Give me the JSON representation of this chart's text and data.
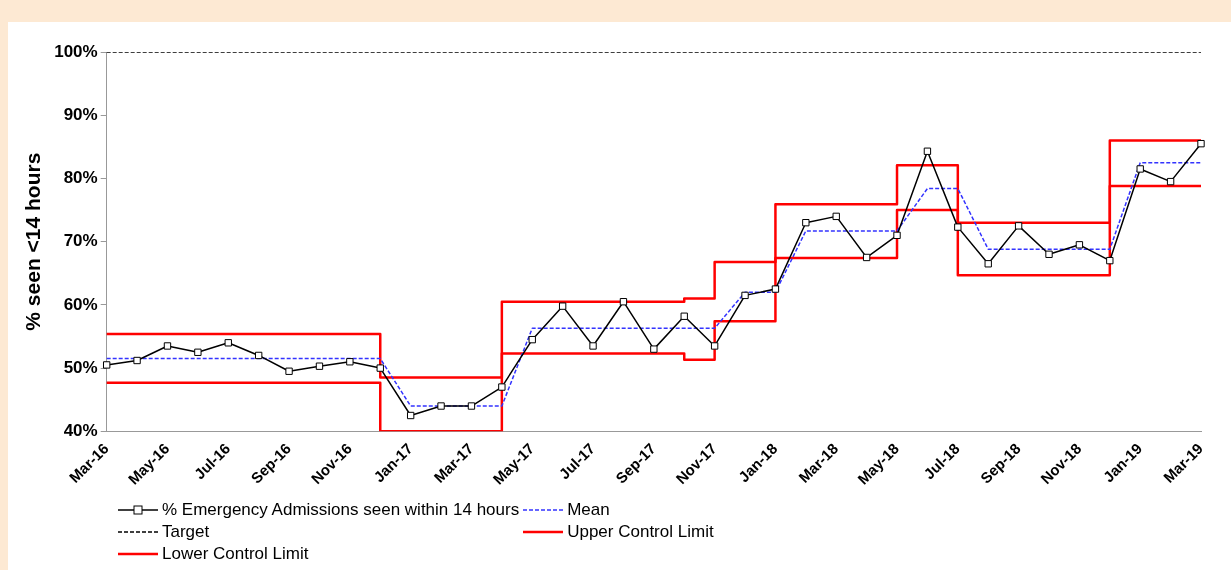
{
  "chart_data": {
    "type": "line",
    "ylabel": "% seen <14 hours",
    "categories": [
      "Mar-16",
      null,
      "May-16",
      null,
      "Jul-16",
      null,
      "Sep-16",
      null,
      "Nov-16",
      null,
      "Jan-17",
      null,
      "Mar-17",
      null,
      "May-17",
      null,
      "Jul-17",
      null,
      "Sep-17",
      null,
      "Nov-17",
      null,
      "Jan-18",
      null,
      "Mar-18",
      null,
      "May-18",
      null,
      "Jul-18",
      null,
      "Sep-18",
      null,
      "Nov-18",
      null,
      "Jan-19",
      null,
      "Mar-19"
    ],
    "ylim": [
      40,
      100
    ],
    "yticks": [
      {
        "value": 40,
        "label": "40%"
      },
      {
        "value": 50,
        "label": "50%"
      },
      {
        "value": 60,
        "label": "60%"
      },
      {
        "value": 70,
        "label": "70%"
      },
      {
        "value": 80,
        "label": "80%"
      },
      {
        "value": 90,
        "label": "90%"
      },
      {
        "value": 100,
        "label": "100%"
      }
    ],
    "grid": false,
    "legend": "bottom",
    "series": [
      {
        "name": "% Emergency Admissions seen within 14 hours",
        "type": "line",
        "color": "#000000",
        "marker": "square",
        "line_style": "solid",
        "values": [
          50.5,
          51.2,
          53.5,
          52.5,
          54,
          52,
          49.5,
          50.3,
          51,
          50,
          42.5,
          44,
          44,
          47,
          54.5,
          59.8,
          53.5,
          60.5,
          53,
          58.2,
          53.5,
          61.5,
          62.5,
          73,
          74,
          67.5,
          71,
          84.3,
          72.3,
          66.5,
          72.5,
          68,
          69.5,
          67,
          81.5,
          79.5,
          85.5
        ]
      },
      {
        "name": "Mean",
        "type": "line",
        "color": "#3333ff",
        "marker": "none",
        "line_style": "dashed",
        "values": [
          51.5,
          51.5,
          51.5,
          51.5,
          51.5,
          51.5,
          51.5,
          51.5,
          51.5,
          51.5,
          44,
          44,
          44,
          44,
          56.3,
          56.3,
          56.3,
          56.3,
          56.3,
          56.3,
          56.3,
          62,
          62,
          71.7,
          71.7,
          71.7,
          71.7,
          78.4,
          78.4,
          68.8,
          68.8,
          68.8,
          68.8,
          68.8,
          82.5,
          82.5,
          82.5
        ]
      },
      {
        "name": "Target",
        "type": "line",
        "color": "#000000",
        "marker": "none",
        "line_style": "dashed",
        "values": [
          100,
          100,
          100,
          100,
          100,
          100,
          100,
          100,
          100,
          100,
          100,
          100,
          100,
          100,
          100,
          100,
          100,
          100,
          100,
          100,
          100,
          100,
          100,
          100,
          100,
          100,
          100,
          100,
          100,
          100,
          100,
          100,
          100,
          100,
          100,
          100,
          100
        ]
      },
      {
        "name": "Upper Control Limit",
        "type": "step",
        "color": "#ff0000",
        "marker": "none",
        "line_style": "solid",
        "values": [
          55.4,
          55.4,
          55.4,
          55.4,
          55.4,
          55.4,
          55.4,
          55.4,
          55.4,
          55.4,
          48.5,
          48.5,
          48.5,
          48.5,
          60.5,
          60.5,
          60.5,
          60.5,
          60.5,
          60.5,
          61,
          66.8,
          66.8,
          75.9,
          75.9,
          75.9,
          75.9,
          82.1,
          82.1,
          73,
          73,
          73,
          73,
          73,
          86,
          86,
          86
        ]
      },
      {
        "name": "Lower Control Limit",
        "type": "step",
        "color": "#ff0000",
        "marker": "none",
        "line_style": "solid",
        "values": [
          47.7,
          47.7,
          47.7,
          47.7,
          47.7,
          47.7,
          47.7,
          47.7,
          47.7,
          47.7,
          40,
          40,
          40,
          40,
          52.3,
          52.3,
          52.3,
          52.3,
          52.3,
          52.3,
          51.3,
          57.4,
          57.4,
          67.4,
          67.4,
          67.4,
          67.4,
          75,
          75,
          64.7,
          64.7,
          64.7,
          64.7,
          64.7,
          78.8,
          78.8,
          78.8
        ]
      }
    ]
  }
}
